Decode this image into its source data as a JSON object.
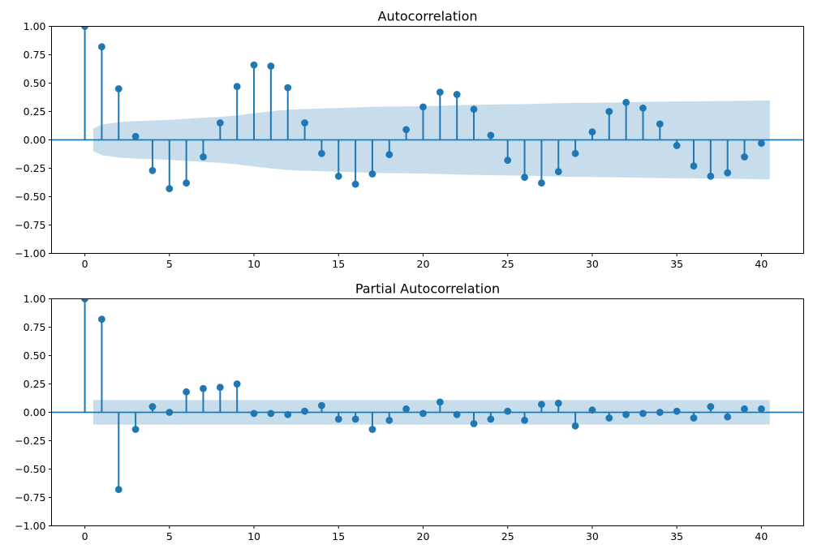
{
  "style": {
    "accent_color": "#1f77b4",
    "band_color": "#1f77b4",
    "band_opacity": 0.25,
    "axis_color": "#000000",
    "text_color": "#000000",
    "background": "#ffffff"
  },
  "chart_data": [
    {
      "type": "stem",
      "title": "Autocorrelation",
      "xlabel": "",
      "ylabel": "",
      "grid": false,
      "legend_position": "none",
      "xlim": [
        -1.97,
        42.5
      ],
      "ylim": [
        -1.0,
        1.0
      ],
      "xticks": {
        "values": [
          0,
          5,
          10,
          15,
          20,
          25,
          30,
          35,
          40
        ],
        "labels": [
          "0",
          "5",
          "10",
          "15",
          "20",
          "25",
          "30",
          "35",
          "40"
        ]
      },
      "yticks": {
        "values": [
          1.0,
          0.75,
          0.5,
          0.25,
          0.0,
          -0.25,
          -0.5,
          -0.75,
          -1.0
        ],
        "labels": [
          "1.00",
          "0.75",
          "0.50",
          "0.25",
          "0.00",
          "−0.25",
          "−0.50",
          "−0.75",
          "−1.00"
        ]
      },
      "lags": [
        0,
        1,
        2,
        3,
        4,
        5,
        6,
        7,
        8,
        9,
        10,
        11,
        12,
        13,
        14,
        15,
        16,
        17,
        18,
        19,
        20,
        21,
        22,
        23,
        24,
        25,
        26,
        27,
        28,
        29,
        30,
        31,
        32,
        33,
        34,
        35,
        36,
        37,
        38,
        39,
        40
      ],
      "values": [
        1.0,
        0.82,
        0.45,
        0.03,
        -0.27,
        -0.43,
        -0.38,
        -0.15,
        0.15,
        0.47,
        0.66,
        0.65,
        0.46,
        0.15,
        -0.12,
        -0.32,
        -0.39,
        -0.3,
        -0.13,
        0.09,
        0.29,
        0.42,
        0.4,
        0.27,
        0.04,
        -0.18,
        -0.33,
        -0.38,
        -0.28,
        -0.12,
        0.07,
        0.25,
        0.33,
        0.28,
        0.14,
        -0.05,
        -0.23,
        -0.32,
        -0.29,
        -0.15,
        -0.03
      ],
      "confidence_band": {
        "lag": [
          0.5,
          1,
          2,
          3,
          4,
          5,
          6,
          7,
          8,
          9,
          10,
          11,
          12,
          13,
          14,
          15,
          16,
          17,
          18,
          19,
          20,
          21,
          22,
          23,
          24,
          25,
          26,
          27,
          28,
          29,
          30,
          31,
          32,
          33,
          34,
          35,
          36,
          37,
          38,
          39,
          40,
          40.5
        ],
        "halfwidth": [
          0.1,
          0.135,
          0.155,
          0.165,
          0.17,
          0.177,
          0.185,
          0.195,
          0.203,
          0.215,
          0.235,
          0.252,
          0.265,
          0.272,
          0.276,
          0.28,
          0.286,
          0.291,
          0.294,
          0.295,
          0.297,
          0.3,
          0.305,
          0.309,
          0.312,
          0.313,
          0.315,
          0.319,
          0.323,
          0.326,
          0.327,
          0.329,
          0.331,
          0.334,
          0.337,
          0.338,
          0.339,
          0.341,
          0.343,
          0.345,
          0.346,
          0.346
        ]
      }
    },
    {
      "type": "stem",
      "title": "Partial Autocorrelation",
      "xlabel": "",
      "ylabel": "",
      "grid": false,
      "legend_position": "none",
      "xlim": [
        -1.97,
        42.5
      ],
      "ylim": [
        -1.0,
        1.0
      ],
      "xticks": {
        "values": [
          0,
          5,
          10,
          15,
          20,
          25,
          30,
          35,
          40
        ],
        "labels": [
          "0",
          "5",
          "10",
          "15",
          "20",
          "25",
          "30",
          "35",
          "40"
        ]
      },
      "yticks": {
        "values": [
          1.0,
          0.75,
          0.5,
          0.25,
          0.0,
          -0.25,
          -0.5,
          -0.75,
          -1.0
        ],
        "labels": [
          "1.00",
          "0.75",
          "0.50",
          "0.25",
          "0.00",
          "−0.25",
          "−0.50",
          "−0.75",
          "−1.00"
        ]
      },
      "lags": [
        0,
        1,
        2,
        3,
        4,
        5,
        6,
        7,
        8,
        9,
        10,
        11,
        12,
        13,
        14,
        15,
        16,
        17,
        18,
        19,
        20,
        21,
        22,
        23,
        24,
        25,
        26,
        27,
        28,
        29,
        30,
        31,
        32,
        33,
        34,
        35,
        36,
        37,
        38,
        39,
        40
      ],
      "values": [
        1.0,
        0.82,
        -0.68,
        -0.15,
        0.05,
        0.0,
        0.18,
        0.21,
        0.22,
        0.25,
        -0.01,
        -0.01,
        -0.02,
        0.01,
        0.06,
        -0.06,
        -0.06,
        -0.15,
        -0.07,
        0.03,
        -0.01,
        0.09,
        -0.02,
        -0.1,
        -0.06,
        0.01,
        -0.07,
        0.07,
        0.08,
        -0.12,
        0.02,
        -0.05,
        -0.02,
        -0.01,
        0.0,
        0.01,
        -0.05,
        0.05,
        -0.04,
        0.03,
        0.03
      ],
      "confidence_band": {
        "lag": [
          0.5,
          40.5
        ],
        "halfwidth": [
          0.108,
          0.108
        ]
      }
    }
  ]
}
